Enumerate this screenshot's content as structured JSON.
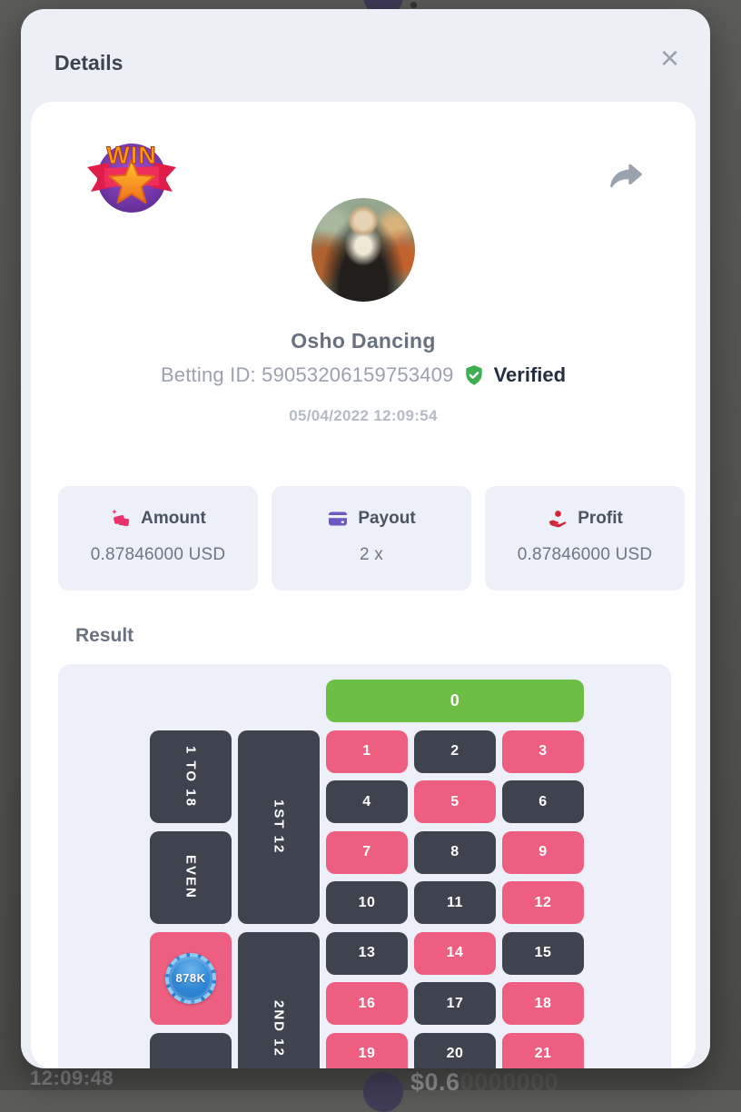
{
  "background": {
    "time_row": "12:09:48",
    "amount_primary": "$0.6",
    "amount_trailing": "0000000"
  },
  "modal": {
    "title": "Details",
    "close_label": "×"
  },
  "profile": {
    "badge": "WIN",
    "name": "Osho Dancing",
    "betting_id": "Betting ID: 59053206159753409",
    "verified": "Verified",
    "timestamp": "05/04/2022 12:09:54"
  },
  "stats": {
    "amount_label": "Amount",
    "amount_value": "0.87846000 USD",
    "payout_label": "Payout",
    "payout_value": "2 x",
    "profit_label": "Profit",
    "profit_value": "0.87846000 USD"
  },
  "result": {
    "section_label": "Result",
    "zero": "0",
    "chip": "878K",
    "bet_1to18": "1 TO 18",
    "bet_even": "EVEN",
    "dozen_1st": "1ST 12",
    "dozen_2nd": "2ND 12",
    "colors": {
      "green": "#6cbf44",
      "red": "#ee5e80",
      "black": "#3f434d"
    },
    "numbers": [
      {
        "label": "1",
        "color": "red"
      },
      {
        "label": "2",
        "color": "black"
      },
      {
        "label": "3",
        "color": "red"
      },
      {
        "label": "4",
        "color": "black"
      },
      {
        "label": "5",
        "color": "red"
      },
      {
        "label": "6",
        "color": "black"
      },
      {
        "label": "7",
        "color": "red"
      },
      {
        "label": "8",
        "color": "black"
      },
      {
        "label": "9",
        "color": "red"
      },
      {
        "label": "10",
        "color": "black"
      },
      {
        "label": "11",
        "color": "black"
      },
      {
        "label": "12",
        "color": "red"
      },
      {
        "label": "13",
        "color": "black"
      },
      {
        "label": "14",
        "color": "red"
      },
      {
        "label": "15",
        "color": "black"
      },
      {
        "label": "16",
        "color": "red"
      },
      {
        "label": "17",
        "color": "black"
      },
      {
        "label": "18",
        "color": "red"
      },
      {
        "label": "19",
        "color": "red"
      },
      {
        "label": "20",
        "color": "black"
      },
      {
        "label": "21",
        "color": "red"
      }
    ]
  }
}
